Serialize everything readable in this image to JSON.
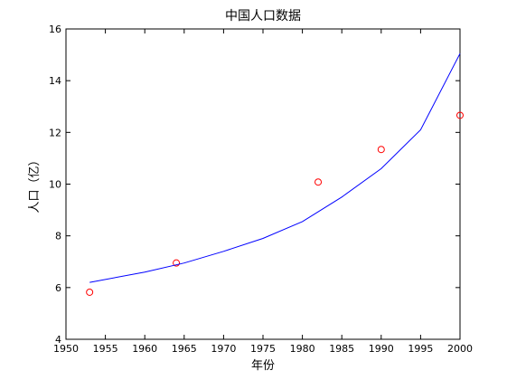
{
  "chart_data": {
    "type": "scatter",
    "title": "中国人口数据",
    "xlabel": "年份",
    "ylabel": "人口（亿）",
    "xlim": [
      1950,
      2000
    ],
    "ylim": [
      4,
      16
    ],
    "xticks": [
      1950,
      1955,
      1960,
      1965,
      1970,
      1975,
      1980,
      1985,
      1990,
      1995,
      2000
    ],
    "yticks": [
      4,
      6,
      8,
      10,
      12,
      14,
      16
    ],
    "grid": false,
    "series": [
      {
        "kind": "markers",
        "marker": "circle",
        "color": "#ff0000",
        "points": [
          {
            "x": 1953,
            "y": 5.82
          },
          {
            "x": 1964,
            "y": 6.95
          },
          {
            "x": 1982,
            "y": 10.08
          },
          {
            "x": 1990,
            "y": 11.34
          },
          {
            "x": 2000,
            "y": 12.66
          }
        ]
      },
      {
        "kind": "line",
        "color": "#0000ff",
        "points": [
          {
            "x": 1953,
            "y": 6.2
          },
          {
            "x": 1960,
            "y": 6.6
          },
          {
            "x": 1965,
            "y": 6.95
          },
          {
            "x": 1970,
            "y": 7.4
          },
          {
            "x": 1975,
            "y": 7.9
          },
          {
            "x": 1980,
            "y": 8.55
          },
          {
            "x": 1985,
            "y": 9.5
          },
          {
            "x": 1990,
            "y": 10.6
          },
          {
            "x": 1995,
            "y": 12.1
          },
          {
            "x": 2000,
            "y": 15.05
          }
        ]
      }
    ]
  }
}
